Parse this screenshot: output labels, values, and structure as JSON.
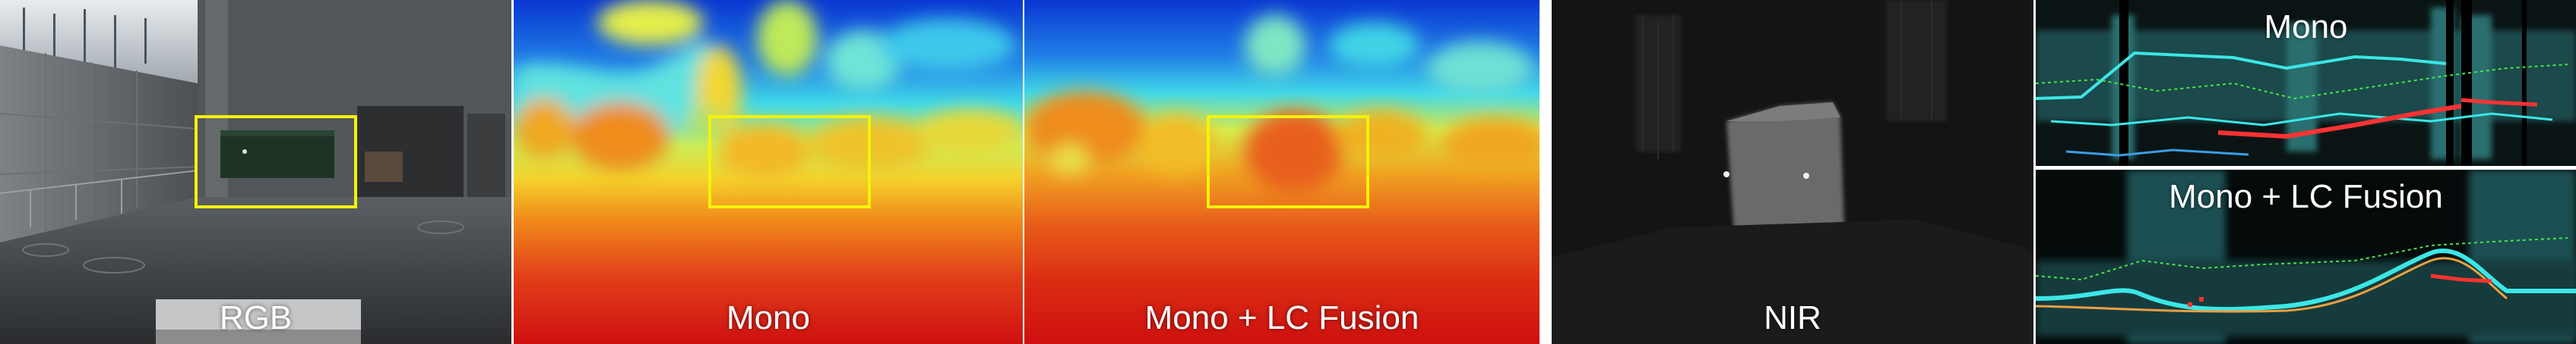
{
  "panels": {
    "rgb": {
      "caption": "RGB"
    },
    "mono": {
      "caption": "Mono"
    },
    "fusion": {
      "caption": "Mono + LC Fusion"
    },
    "nir": {
      "caption": "NIR"
    },
    "side_mono": {
      "caption": "Mono"
    },
    "side_fusion": {
      "caption": "Mono + LC Fusion"
    }
  },
  "colors": {
    "highlight_box": "#f4f20a",
    "depth_near": "#d2140c",
    "depth_far": "#0a37d2",
    "curve_cyan": "#3ce6e6",
    "curve_red": "#ff3232",
    "curve_green": "#46e646"
  }
}
